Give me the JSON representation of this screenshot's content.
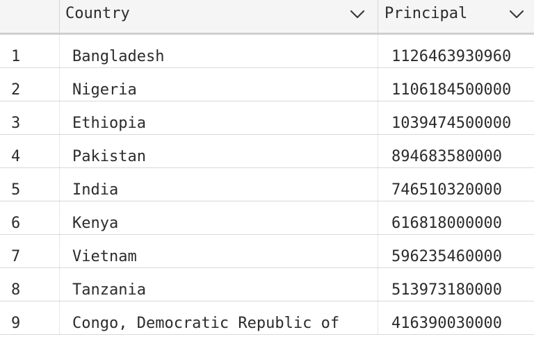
{
  "table": {
    "columns": [
      {
        "label": "",
        "icon": null
      },
      {
        "label": "Country",
        "icon": "chevron-down-icon"
      },
      {
        "label": "Principal",
        "icon": "chevron-down-icon"
      }
    ],
    "rows": [
      {
        "index": "1",
        "country": "Bangladesh",
        "principal": "1126463930960"
      },
      {
        "index": "2",
        "country": "Nigeria",
        "principal": "1106184500000"
      },
      {
        "index": "3",
        "country": "Ethiopia",
        "principal": "1039474500000"
      },
      {
        "index": "4",
        "country": "Pakistan",
        "principal": "894683580000"
      },
      {
        "index": "5",
        "country": "India",
        "principal": "746510320000"
      },
      {
        "index": "6",
        "country": "Kenya",
        "principal": "616818000000"
      },
      {
        "index": "7",
        "country": "Vietnam",
        "principal": "596235460000"
      },
      {
        "index": "8",
        "country": "Tanzania",
        "principal": "513973180000"
      },
      {
        "index": "9",
        "country": "Congo, Democratic Republic of",
        "principal": "416390030000"
      }
    ]
  }
}
